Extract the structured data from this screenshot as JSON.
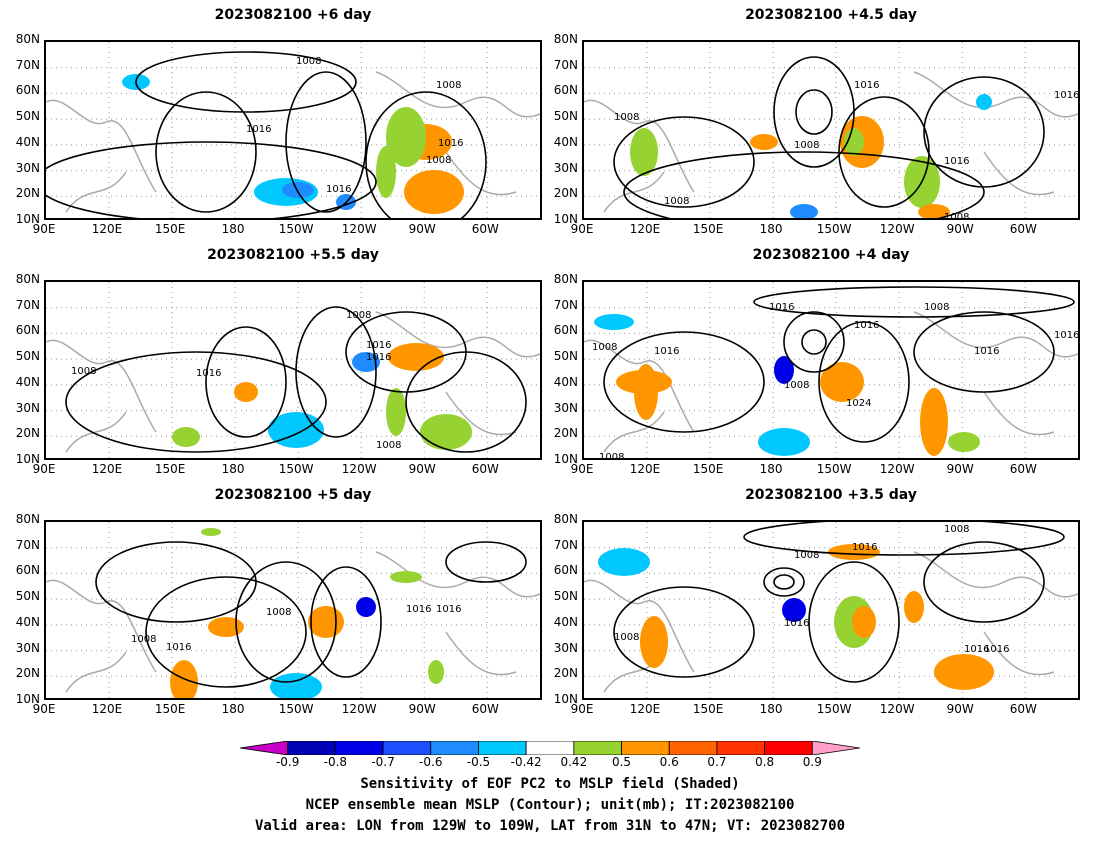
{
  "panels": [
    {
      "title": "2023082100 +6 day",
      "contour_labels": [
        "1008",
        "1008",
        "1016",
        "1016",
        "1016",
        "1008"
      ]
    },
    {
      "title": "2023082100 +4.5 day",
      "contour_labels": [
        "1016",
        "1008",
        "1016",
        "1008",
        "1016",
        "1008",
        "1008"
      ]
    },
    {
      "title": "2023082100 +5.5 day",
      "contour_labels": [
        "1008",
        "1016",
        "1016",
        "1016",
        "1008",
        "1008"
      ]
    },
    {
      "title": "2023082100 +4 day",
      "contour_labels": [
        "1016",
        "1016",
        "1008",
        "1016",
        "1016",
        "1016",
        "1008",
        "1024",
        "1008",
        "1008"
      ]
    },
    {
      "title": "2023082100 +5 day",
      "contour_labels": [
        "1016",
        "1008",
        "1016",
        "1008",
        "1016"
      ]
    },
    {
      "title": "2023082100 +3.5 day",
      "contour_labels": [
        "1008",
        "1016",
        "1016",
        "1008",
        "1008",
        "1016",
        "1016"
      ]
    }
  ],
  "lat_ticks": [
    "80N",
    "70N",
    "60N",
    "50N",
    "40N",
    "30N",
    "20N",
    "10N"
  ],
  "lon_ticks": [
    "90E",
    "120E",
    "150E",
    "180",
    "150W",
    "120W",
    "90W",
    "60W"
  ],
  "colorbar": {
    "values": [
      "-0.9",
      "-0.8",
      "-0.7",
      "-0.6",
      "-0.5",
      "-0.42",
      "0.42",
      "0.5",
      "0.6",
      "0.7",
      "0.8",
      "0.9"
    ],
    "colors": [
      "#c800c8",
      "#0000b4",
      "#0000e6",
      "#1e50ff",
      "#1e8cff",
      "#00c8ff",
      "#ffffff",
      "#96d232",
      "#ff9600",
      "#ff6400",
      "#ff3200",
      "#ff0000",
      "#ffa0c8"
    ]
  },
  "caption": {
    "line1": "Sensitivity of EOF PC2 to MSLP field (Shaded)",
    "line2": "NCEP ensemble mean MSLP (Contour); unit(mb); IT:2023082100",
    "line3": "Valid area: LON from 129W to 109W, LAT from 31N to 47N; VT: 2023082700"
  }
}
